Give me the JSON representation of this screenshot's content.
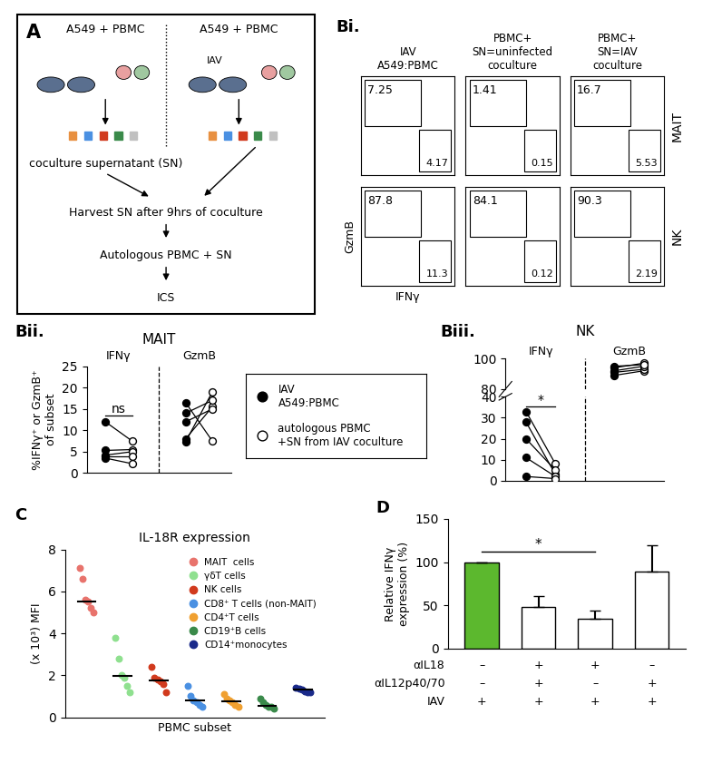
{
  "diagram": {
    "panel": "A",
    "left_label": "A549 + PBMC",
    "right_label": "A549 + PBMC",
    "virus_label": "IAV",
    "steps": [
      "coculture supernatant (SN)",
      "Harvest SN after 9hrs of coculture",
      "Autologous PBMC + SN",
      "ICS"
    ]
  },
  "conditions": [
    {
      "name": "IAV\nA549:PBMC",
      "marker": "filled"
    },
    {
      "name": "autologous PBMC\n+SN from IAV coculture",
      "marker": "open"
    }
  ],
  "chart_data": [
    {
      "type": "flow_gates",
      "panel": "Bi.",
      "xlabel": "IFNγ",
      "ylabel": "GzmB",
      "columns": [
        "IAV\nA549:PBMC",
        "PBMC+\nSN=uninfected\ncoculture",
        "PBMC+\nSN=IAV\ncoculture"
      ],
      "rows": [
        {
          "label": "MAIT",
          "gzmb_pct": [
            7.25,
            1.41,
            16.7
          ],
          "ifng_pct": [
            4.17,
            0.15,
            5.53
          ]
        },
        {
          "label": "NK",
          "gzmb_pct": [
            87.8,
            84.1,
            90.3
          ],
          "ifng_pct": [
            11.3,
            0.12,
            2.19
          ]
        }
      ],
      "tick_labels": false
    },
    {
      "type": "paired",
      "panel": "Bii.",
      "title": "MAIT",
      "ylabel": "%IFNγ⁺ or GzmB⁺\nof subset",
      "ylim": [
        0,
        25
      ],
      "yticks": [
        0,
        5,
        10,
        15,
        20,
        25
      ],
      "tick_labels": "y",
      "groups": [
        {
          "category": "IFNγ",
          "annotation": "ns",
          "values": [
            [
              12,
              7.5
            ],
            [
              5.3,
              5.5
            ],
            [
              4.2,
              5
            ],
            [
              4,
              4
            ],
            [
              3.5,
              2.2
            ]
          ]
        },
        {
          "category": "GzmB",
          "values": [
            [
              16.5,
              7.5
            ],
            [
              7.3,
              19
            ],
            [
              8,
              15.5
            ],
            [
              12,
              15
            ],
            [
              14,
              17
            ]
          ]
        }
      ]
    },
    {
      "type": "paired",
      "panel": "Biii.",
      "title": "NK",
      "ylim": [
        0,
        40
      ],
      "yticks": [
        0,
        10,
        20,
        30,
        40
      ],
      "upper_ylim": [
        80,
        100
      ],
      "upper_yticks": [
        80,
        100
      ],
      "tick_labels": "y",
      "groups": [
        {
          "category": "IFNγ",
          "annotation": "*",
          "values": [
            [
              33,
              8
            ],
            [
              28,
              3
            ],
            [
              20,
              5
            ],
            [
              11,
              2
            ],
            [
              2,
              1
            ]
          ]
        },
        {
          "category": "GzmB",
          "values": [
            [
              89,
              92
            ],
            [
              91,
              93
            ],
            [
              92,
              95
            ],
            [
              94,
              97
            ],
            [
              95,
              96
            ]
          ]
        }
      ]
    },
    {
      "type": "strip",
      "panel": "C",
      "title": "IL-18R expression",
      "xlabel": "PBMC subset",
      "ylabel": "(x 10³) MFI",
      "ylim": [
        0,
        8
      ],
      "yticks": [
        0,
        2,
        4,
        6,
        8
      ],
      "tick_labels": "y",
      "legend": "upper right",
      "series": [
        {
          "name": "MAIT  cells",
          "color": "#e8736c",
          "values": [
            7.1,
            6.6,
            5.6,
            5.5,
            5.2,
            5.0
          ],
          "median": 5.5
        },
        {
          "name": "γδT cells",
          "color": "#8fe08f",
          "values": [
            3.8,
            2.8,
            2.0,
            1.9,
            1.5,
            1.2
          ],
          "median": 1.95
        },
        {
          "name": "NK cells",
          "color": "#d13a1d",
          "values": [
            2.4,
            1.9,
            1.8,
            1.7,
            1.6,
            1.2
          ],
          "median": 1.75
        },
        {
          "name": "CD8⁺ T cells (non-MAIT)",
          "color": "#4a90e2",
          "values": [
            1.5,
            1.0,
            0.8,
            0.7,
            0.6,
            0.5
          ],
          "median": 0.8
        },
        {
          "name": "CD4⁺T cells",
          "color": "#f0a030",
          "values": [
            1.1,
            0.9,
            0.8,
            0.7,
            0.6,
            0.5
          ],
          "median": 0.75
        },
        {
          "name": "CD19⁺B cells",
          "color": "#3a8a4a",
          "values": [
            0.9,
            0.7,
            0.6,
            0.5,
            0.5,
            0.4
          ],
          "median": 0.55
        },
        {
          "name": "CD14⁺monocytes",
          "color": "#1a2a8a",
          "values": [
            1.4,
            1.35,
            1.3,
            1.25,
            1.2,
            1.2
          ],
          "median": 1.3
        }
      ]
    },
    {
      "type": "bar",
      "panel": "D",
      "ylabel": "Relative IFNγ\nexpression (%)",
      "ylim": [
        0,
        150
      ],
      "yticks": [
        0,
        50,
        100,
        150
      ],
      "tick_labels": "y",
      "values": [
        100,
        48,
        34,
        89
      ],
      "errors": [
        0,
        13,
        10,
        30
      ],
      "colors": [
        "#5cb82e",
        "#ffffff",
        "#ffffff",
        "#ffffff"
      ],
      "significance": {
        "from": 0,
        "to": 2,
        "label": "*"
      },
      "table": [
        {
          "label": "αIL18",
          "cells": [
            "–",
            "+",
            "+",
            "–"
          ]
        },
        {
          "label": "αIL12p40/70",
          "cells": [
            "–",
            "+",
            "–",
            "+"
          ]
        },
        {
          "label": "IAV",
          "cells": [
            "+",
            "+",
            "+",
            "+"
          ]
        }
      ]
    }
  ]
}
